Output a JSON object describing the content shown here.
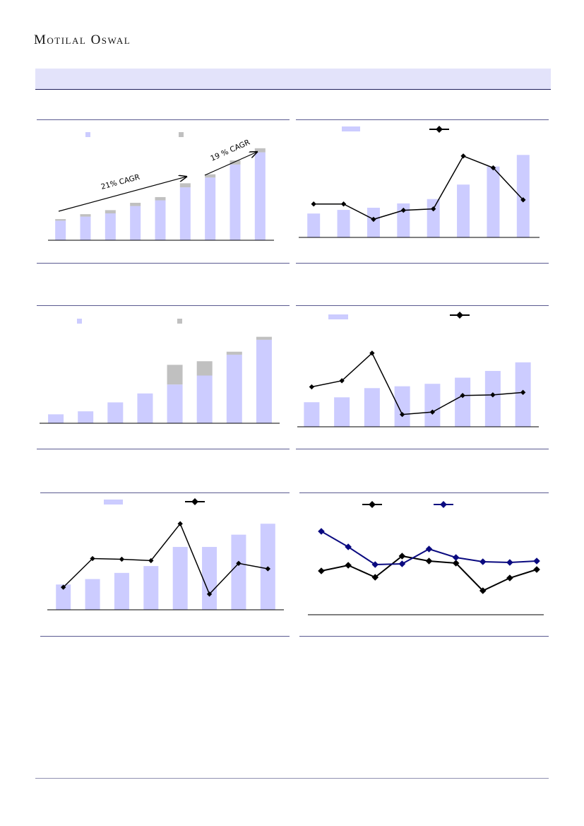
{
  "brand": "Motilal Oswal",
  "colors": {
    "bar": "#ccccff",
    "bar_other": "#c0c0c0",
    "line": "#000000",
    "line_second": "#0a0a80",
    "band": "#e3e3fa",
    "rule": "#5a5a90"
  },
  "annotations": {
    "cagr_1": "21% CAGR",
    "cagr_2": "19 % CAGR"
  },
  "chart_data": [
    {
      "type": "bar",
      "stacked": true,
      "legend_placement": "top",
      "series": [
        {
          "values": [
            24,
            29,
            33,
            42,
            49,
            65,
            77,
            93,
            108
          ]
        },
        {
          "values": [
            2,
            3,
            4,
            4,
            4,
            5,
            4,
            5,
            5
          ]
        }
      ],
      "ylim": [
        0,
        125
      ]
    },
    {
      "type": "bar+line",
      "legend_placement": "top",
      "bars": [
        33,
        38,
        41,
        47,
        53,
        73,
        98,
        114
      ],
      "line": [
        48,
        48,
        26,
        39,
        41,
        117,
        100,
        54
      ],
      "ylim_bar": [
        0,
        125
      ],
      "ylim_line": [
        0,
        130
      ]
    },
    {
      "type": "bar",
      "stacked": true,
      "legend_placement": "top",
      "series": [
        {
          "values": [
            15,
            20,
            35,
            50,
            65,
            80,
            115,
            140
          ]
        },
        {
          "values": [
            0,
            0,
            0,
            0,
            33,
            24,
            5,
            5
          ]
        }
      ],
      "ylim": [
        0,
        160
      ]
    },
    {
      "type": "bar+line",
      "legend_placement": "top",
      "bars": [
        40,
        48,
        63,
        66,
        70,
        80,
        91,
        105
      ],
      "line": [
        65,
        75,
        120,
        20,
        24,
        51,
        52,
        56
      ],
      "ylim_bar": [
        0,
        160
      ],
      "ylim_line": [
        0,
        160
      ]
    },
    {
      "type": "bar+line",
      "legend_placement": "top",
      "bars": [
        37,
        45,
        54,
        64,
        92,
        92,
        110,
        126
      ],
      "line": [
        33,
        75,
        74,
        72,
        126,
        23,
        68,
        60
      ],
      "ylim_bar": [
        0,
        150
      ],
      "ylim_line": [
        0,
        150
      ]
    },
    {
      "type": "line",
      "legend_placement": "top",
      "series": [
        {
          "values": [
            62,
            70,
            53,
            83,
            76,
            73,
            34,
            52,
            64
          ]
        },
        {
          "values": [
            118,
            96,
            71,
            72,
            93,
            81,
            75,
            74,
            76
          ]
        }
      ],
      "ylim": [
        0,
        140
      ]
    }
  ]
}
